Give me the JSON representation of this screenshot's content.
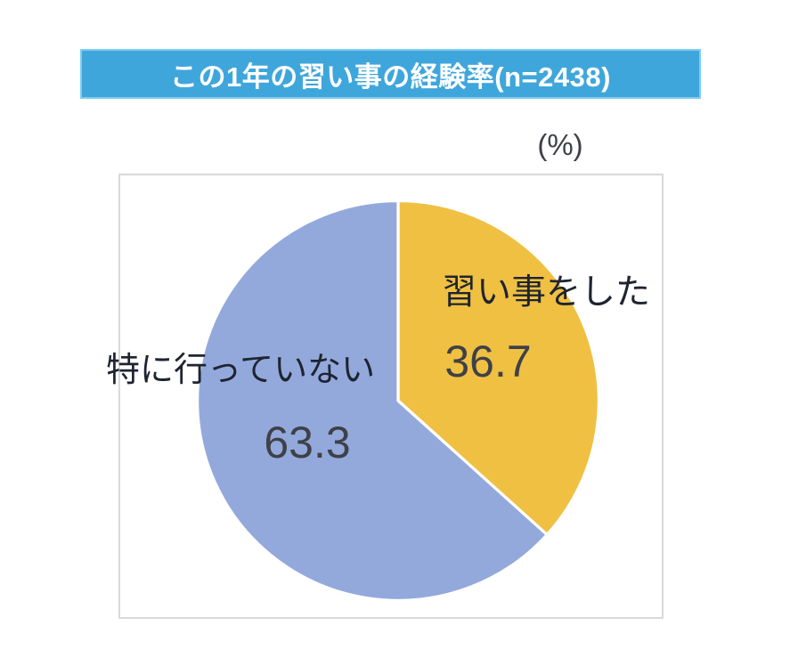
{
  "banner": {
    "title": "この1年の習い事の経験率(n=2438)"
  },
  "unit_label": "(%)",
  "chart_data": {
    "type": "pie",
    "title": "この1年の習い事の経験率(n=2438)",
    "sample_size_label": "n=2438",
    "unit": "%",
    "start_angle_deg": 0,
    "direction": "clockwise",
    "legend_position": "none",
    "labels_on_chart": true,
    "slices": [
      {
        "label": "習い事をした",
        "value": 36.7,
        "color": "#F0C042"
      },
      {
        "label": "特に行っていない",
        "value": 63.3,
        "color": "#93A9DC"
      }
    ]
  },
  "colors": {
    "banner_bg": "#3FA6DC",
    "banner_border": "#7FCDF0",
    "banner_text": "#FFFFFF",
    "label_color": "#1E2430",
    "value_color": "#3F4148",
    "box_border": "#D9D9D9"
  }
}
